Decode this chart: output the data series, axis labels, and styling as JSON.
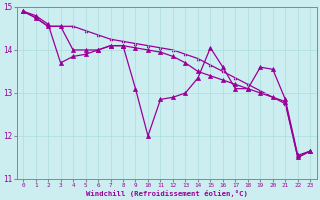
{
  "xlabel": "Windchill (Refroidissement éolien,°C)",
  "bg_color": "#cceef0",
  "line_color": "#990099",
  "grid_color": "#aadddd",
  "spine_color": "#888888",
  "xlim": [
    -0.5,
    23.5
  ],
  "ylim": [
    11,
    15
  ],
  "x_ticks": [
    0,
    1,
    2,
    3,
    4,
    5,
    6,
    7,
    8,
    9,
    10,
    11,
    12,
    13,
    14,
    15,
    16,
    17,
    18,
    19,
    20,
    21,
    22,
    23
  ],
  "y_ticks": [
    11,
    12,
    13,
    14,
    15
  ],
  "series1_x": [
    0,
    1,
    2,
    3,
    4,
    5,
    6,
    7,
    8,
    9,
    10,
    11,
    12,
    13,
    14,
    15,
    16,
    17,
    18,
    19,
    20,
    21,
    22,
    23
  ],
  "series1_y": [
    14.9,
    14.8,
    14.6,
    13.7,
    13.85,
    13.9,
    14.0,
    14.1,
    14.1,
    13.1,
    12.0,
    12.85,
    12.9,
    13.0,
    13.35,
    14.05,
    13.6,
    13.1,
    13.1,
    13.6,
    13.55,
    12.85,
    11.55,
    11.65
  ],
  "series2_x": [
    0,
    1,
    2,
    3,
    4,
    5,
    6,
    7,
    8,
    9,
    10,
    11,
    12,
    13,
    14,
    15,
    16,
    17,
    18,
    19,
    20,
    21,
    22,
    23
  ],
  "series2_y": [
    14.9,
    14.75,
    14.55,
    14.55,
    14.0,
    14.0,
    14.0,
    14.1,
    14.1,
    14.05,
    14.0,
    13.95,
    13.85,
    13.7,
    13.5,
    13.4,
    13.3,
    13.2,
    13.1,
    13.0,
    12.9,
    12.8,
    11.5,
    11.65
  ],
  "series3_x": [
    0,
    1,
    2,
    3,
    4,
    5,
    6,
    7,
    8,
    9,
    10,
    11,
    12,
    13,
    14,
    15,
    16,
    17,
    18,
    19,
    20,
    21,
    22,
    23
  ],
  "series3_y": [
    14.9,
    14.75,
    14.55,
    14.55,
    14.55,
    14.45,
    14.35,
    14.25,
    14.2,
    14.15,
    14.1,
    14.05,
    14.0,
    13.9,
    13.8,
    13.65,
    13.5,
    13.35,
    13.2,
    13.05,
    12.9,
    12.75,
    11.5,
    11.65
  ]
}
